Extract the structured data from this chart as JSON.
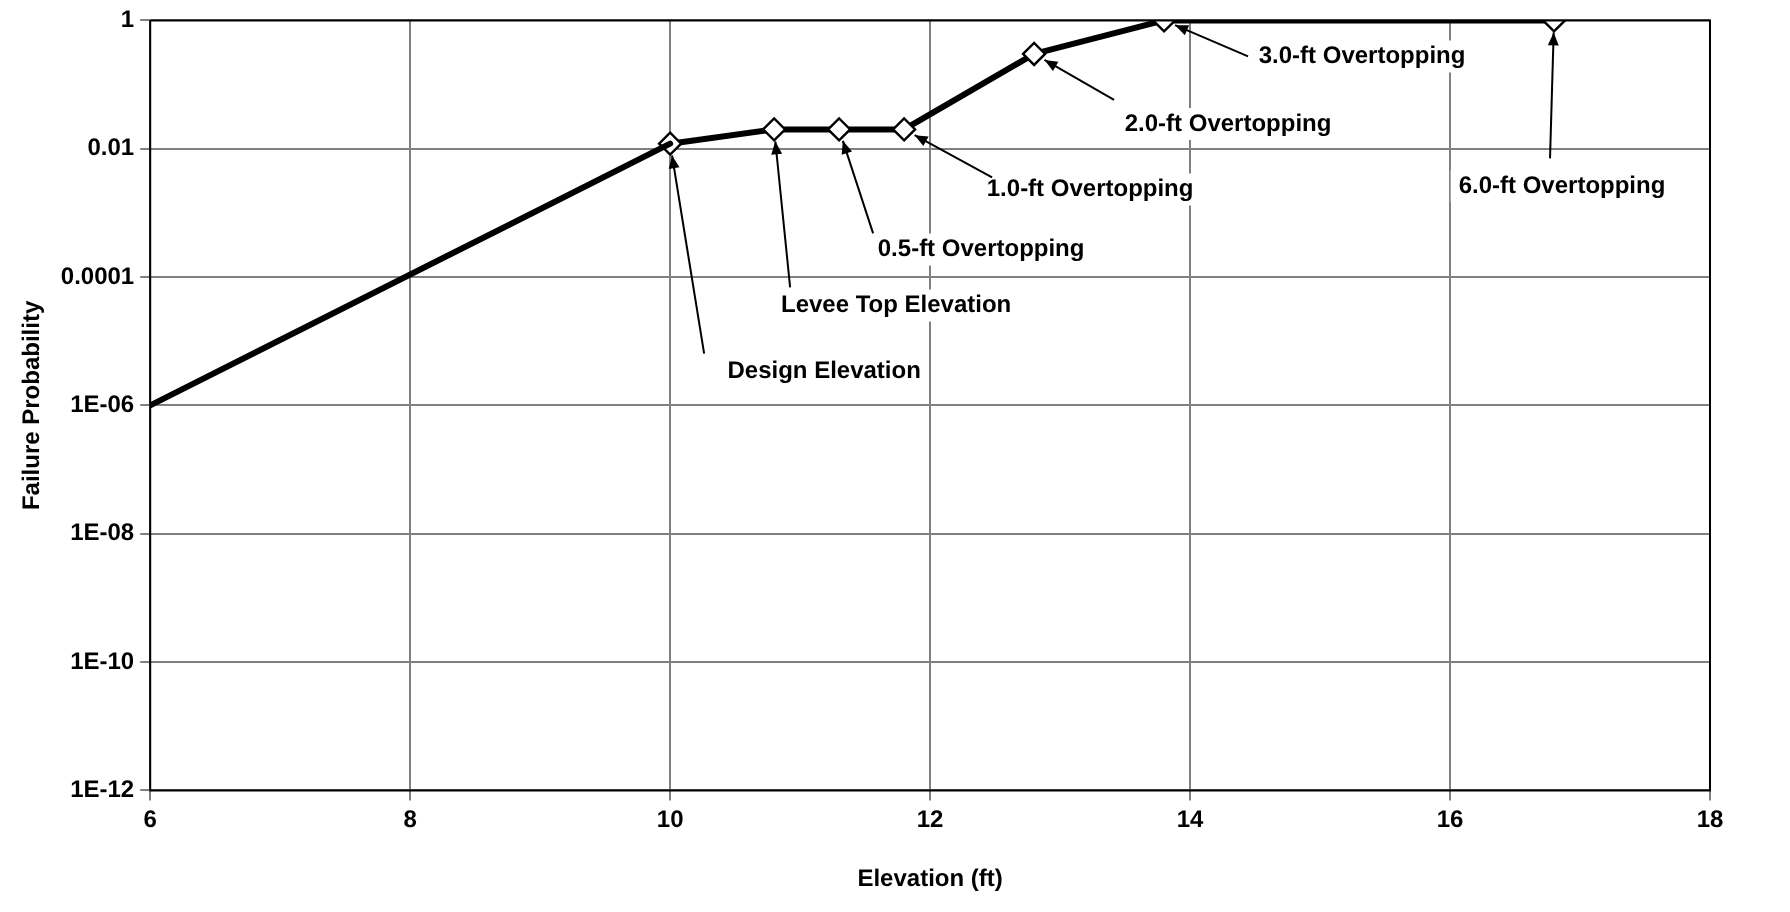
{
  "chart_data": {
    "type": "line",
    "xlabel": "Elevation (ft)",
    "ylabel": "Failure Probability",
    "log": "y",
    "grid": true,
    "legend": false,
    "xlim": [
      6,
      18
    ],
    "xticks": [
      6,
      8,
      10,
      12,
      14,
      16,
      18
    ],
    "ylim": [
      1e-12,
      1
    ],
    "yticks": [
      {
        "value": 1e-12,
        "label": "1E-12"
      },
      {
        "value": 1e-10,
        "label": "1E-10"
      },
      {
        "value": 1e-08,
        "label": "1E-08"
      },
      {
        "value": 1e-06,
        "label": "1E-06"
      },
      {
        "value": 0.0001,
        "label": "0.0001"
      },
      {
        "value": 0.01,
        "label": "0.01"
      },
      {
        "value": 1,
        "label": "1"
      }
    ],
    "series": [
      {
        "color": "#000000",
        "x": [
          6,
          10
        ],
        "values": [
          1e-06,
          0.012
        ]
      },
      {
        "color": "#000000",
        "marker": "diamond",
        "x": [
          10,
          10.8,
          11.3,
          11.8,
          12.8,
          13.8,
          16.8
        ],
        "values": [
          0.012,
          0.02,
          0.02,
          0.02,
          0.3,
          1,
          1
        ]
      }
    ],
    "annotations": [
      {
        "text": "Design Elevation",
        "x": 10,
        "y": 0.012
      },
      {
        "text": "Levee Top Elevation",
        "x": 10.8,
        "y": 0.02
      },
      {
        "text": "0.5-ft Overtopping",
        "x": 11.3,
        "y": 0.02
      },
      {
        "text": "1.0-ft Overtopping",
        "x": 11.8,
        "y": 0.02
      },
      {
        "text": "2.0-ft Overtopping",
        "x": 12.8,
        "y": 0.3
      },
      {
        "text": "3.0-ft Overtopping",
        "x": 13.8,
        "y": 1
      },
      {
        "text": "6.0-ft Overtopping",
        "x": 16.8,
        "y": 1
      }
    ]
  }
}
